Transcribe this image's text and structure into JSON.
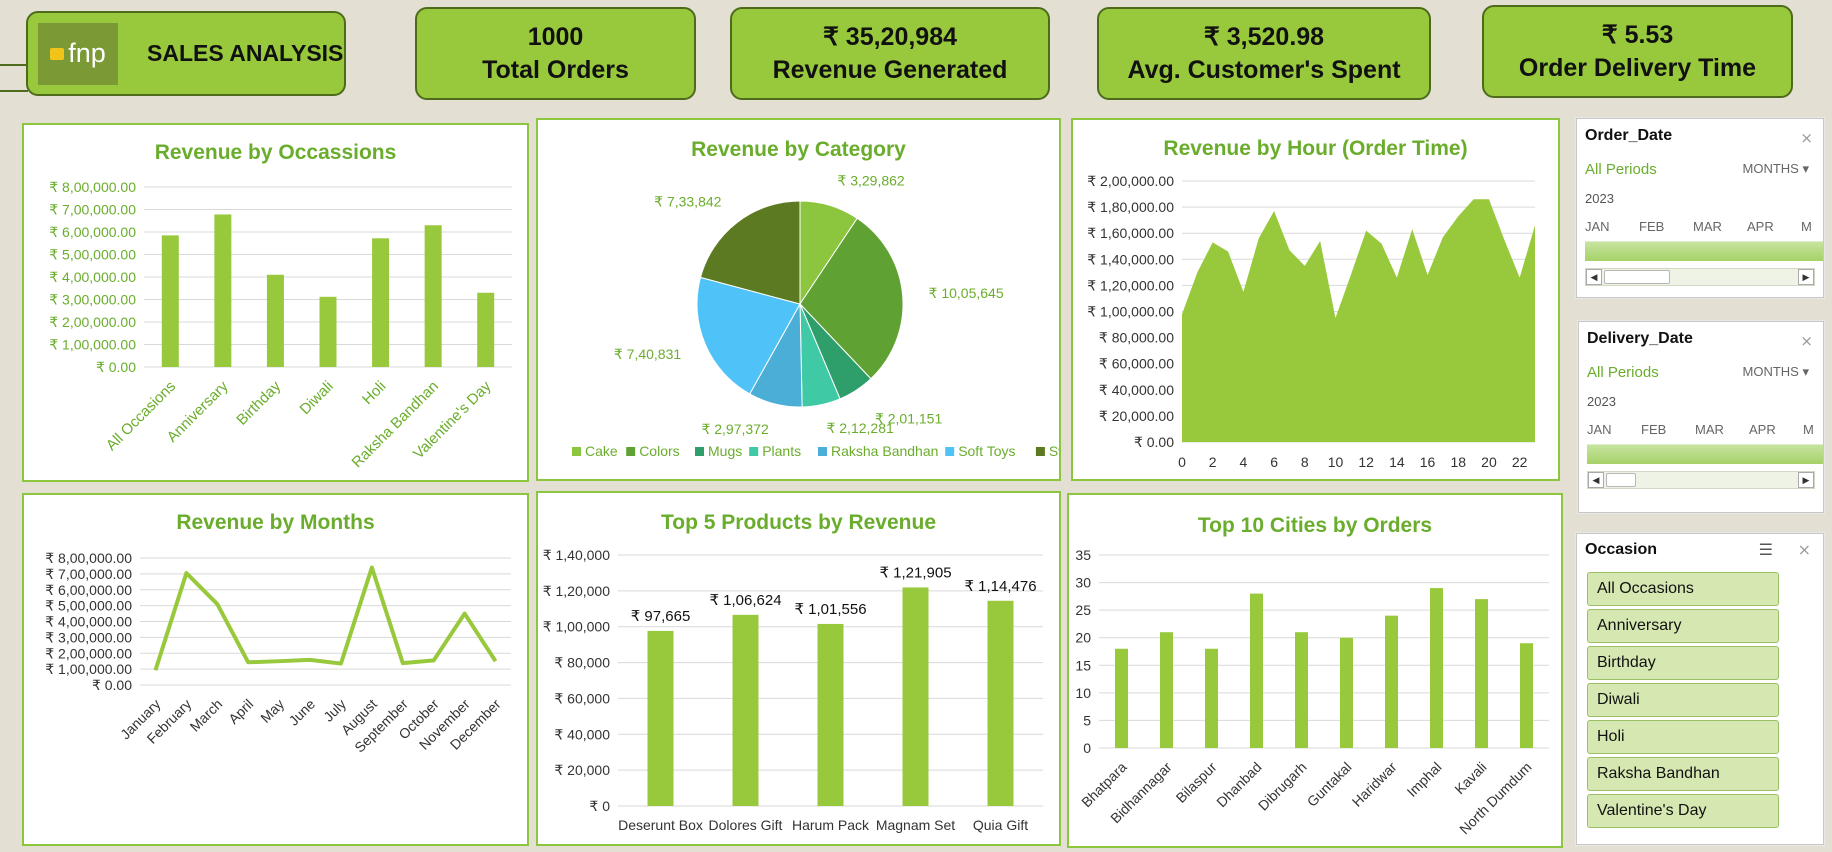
{
  "header": {
    "logo_text": "fnp",
    "title": "SALES ANALYSIS"
  },
  "kpis": [
    {
      "value": "1000",
      "label": "Total Orders"
    },
    {
      "value": "₹ 35,20,984",
      "label": "Revenue Generated"
    },
    {
      "value": "₹ 3,520.98",
      "label": "Avg.  Customer's Spent"
    },
    {
      "value": "₹ 5.53",
      "label": "Order Delivery Time"
    }
  ],
  "colors": {
    "accent": "#98c93c",
    "title": "#6aad2c",
    "background": "#e3e0d3",
    "border": "#8cc63f"
  },
  "slicers": {
    "order_date": {
      "title": "Order_Date",
      "all_periods": "All Periods",
      "level": "MONTHS",
      "year": "2023",
      "months": [
        "JAN",
        "FEB",
        "MAR",
        "APR",
        "M"
      ]
    },
    "delivery_date": {
      "title": "Delivery_Date",
      "all_periods": "All Periods",
      "level": "MONTHS",
      "year": "2023",
      "months": [
        "JAN",
        "FEB",
        "MAR",
        "APR",
        "M"
      ]
    },
    "occasion": {
      "title": "Occasion",
      "items": [
        "All Occasions",
        "Anniversary",
        "Birthday",
        "Diwali",
        "Holi",
        "Raksha Bandhan",
        "Valentine's Day"
      ]
    }
  },
  "chart_data": [
    {
      "id": "occasions",
      "type": "bar",
      "title": "Revenue by Occassions",
      "categories": [
        "All Occasions",
        "Anniversary",
        "Birthday",
        "Diwali",
        "Holi",
        "Raksha Bandhan",
        "Valentine's Day"
      ],
      "values": [
        585000,
        678000,
        410000,
        312000,
        572000,
        630000,
        330000
      ],
      "ylim": [
        0,
        800000
      ],
      "yticks": [
        0,
        100000,
        200000,
        300000,
        400000,
        500000,
        600000,
        700000,
        800000
      ],
      "ytick_labels": [
        "₹ 0.00",
        "₹ 1,00,000.00",
        "₹ 2,00,000.00",
        "₹ 3,00,000.00",
        "₹ 4,00,000.00",
        "₹ 5,00,000.00",
        "₹ 6,00,000.00",
        "₹ 7,00,000.00",
        "₹ 8,00,000.00"
      ],
      "grid": true
    },
    {
      "id": "category",
      "type": "pie",
      "title": "Revenue by Category",
      "categories": [
        "Cake",
        "Colors",
        "Mugs",
        "Plants",
        "Raksha Bandhan",
        "Soft Toys",
        "Sweets"
      ],
      "values": [
        329862,
        1005645,
        201151,
        212281,
        297372,
        740831,
        733842
      ],
      "labels": [
        "₹ 3,29,862",
        "₹ 10,05,645",
        "₹ 2,01,151",
        "₹ 2,12,281",
        "₹ 2,97,372",
        "₹ 7,40,831",
        "₹ 7,33,842"
      ],
      "colors": [
        "#8cc63f",
        "#5fa233",
        "#2e9e6a",
        "#3fc9a5",
        "#4aaed6",
        "#4fc3f7",
        "#5c7a22"
      ],
      "legend": "bottom"
    },
    {
      "id": "hour",
      "type": "area",
      "title": "Revenue by Hour (Order Time)",
      "x": [
        0,
        1,
        2,
        3,
        4,
        5,
        6,
        7,
        8,
        9,
        10,
        11,
        12,
        13,
        14,
        15,
        16,
        17,
        18,
        19,
        20,
        21,
        22,
        23
      ],
      "values": [
        98000,
        130000,
        153000,
        146000,
        115000,
        156000,
        177000,
        147000,
        135000,
        154000,
        95000,
        128000,
        162000,
        152000,
        126000,
        163000,
        128000,
        157000,
        173000,
        186000,
        186000,
        155000,
        126000,
        166000
      ],
      "ylim": [
        0,
        200000
      ],
      "yticks": [
        0,
        20000,
        40000,
        60000,
        80000,
        100000,
        120000,
        140000,
        160000,
        180000,
        200000
      ],
      "ytick_labels": [
        "₹ 0.00",
        "₹ 20,000.00",
        "₹ 40,000.00",
        "₹ 60,000.00",
        "₹ 80,000.00",
        "₹ 1,00,000.00",
        "₹ 1,20,000.00",
        "₹ 1,40,000.00",
        "₹ 1,60,000.00",
        "₹ 1,80,000.00",
        "₹ 2,00,000.00"
      ],
      "xticks": [
        0,
        2,
        4,
        6,
        8,
        10,
        12,
        14,
        16,
        18,
        20,
        22
      ],
      "grid": true
    },
    {
      "id": "months",
      "type": "line",
      "title": "Revenue by Months",
      "categories": [
        "January",
        "February",
        "March",
        "April",
        "May",
        "June",
        "July",
        "August",
        "September",
        "October",
        "November",
        "December"
      ],
      "values": [
        93000,
        705000,
        510000,
        143000,
        150000,
        158000,
        135000,
        740000,
        138000,
        155000,
        450000,
        150000
      ],
      "ylim": [
        0,
        800000
      ],
      "yticks": [
        0,
        100000,
        200000,
        300000,
        400000,
        500000,
        600000,
        700000,
        800000
      ],
      "ytick_labels": [
        "₹ 0.00",
        "₹ 1,00,000.00",
        "₹ 2,00,000.00",
        "₹ 3,00,000.00",
        "₹ 4,00,000.00",
        "₹ 5,00,000.00",
        "₹ 6,00,000.00",
        "₹ 7,00,000.00",
        "₹ 8,00,000.00"
      ],
      "grid": true
    },
    {
      "id": "products",
      "type": "bar",
      "title": "Top 5 Products by Revenue",
      "categories": [
        "Deserunt Box",
        "Dolores Gift",
        "Harum Pack",
        "Magnam Set",
        "Quia Gift"
      ],
      "values": [
        97665,
        106624,
        101556,
        121905,
        114476
      ],
      "labels": [
        "₹ 97,665",
        "₹ 1,06,624",
        "₹ 1,01,556",
        "₹ 1,21,905",
        "₹ 1,14,476"
      ],
      "ylim": [
        0,
        140000
      ],
      "yticks": [
        0,
        20000,
        40000,
        60000,
        80000,
        100000,
        120000,
        140000
      ],
      "ytick_labels": [
        "₹ 0",
        "₹ 20,000",
        "₹ 40,000",
        "₹ 60,000",
        "₹ 80,000",
        "₹ 1,00,000",
        "₹ 1,20,000",
        "₹ 1,40,000"
      ],
      "grid": true
    },
    {
      "id": "cities",
      "type": "bar",
      "title": "Top 10 Cities by Orders",
      "categories": [
        "Bhatpara",
        "Bidhannagar",
        "Bilaspur",
        "Dhanbad",
        "Dibrugarh",
        "Guntakal",
        "Haridwar",
        "Imphal",
        "Kavali",
        "North Dumdum"
      ],
      "values": [
        18,
        21,
        18,
        28,
        21,
        20,
        24,
        29,
        27,
        19
      ],
      "ylim": [
        0,
        35
      ],
      "yticks": [
        0,
        5,
        10,
        15,
        20,
        25,
        30,
        35
      ],
      "ytick_labels": [
        "0",
        "5",
        "10",
        "15",
        "20",
        "25",
        "30",
        "35"
      ],
      "grid": true
    }
  ]
}
